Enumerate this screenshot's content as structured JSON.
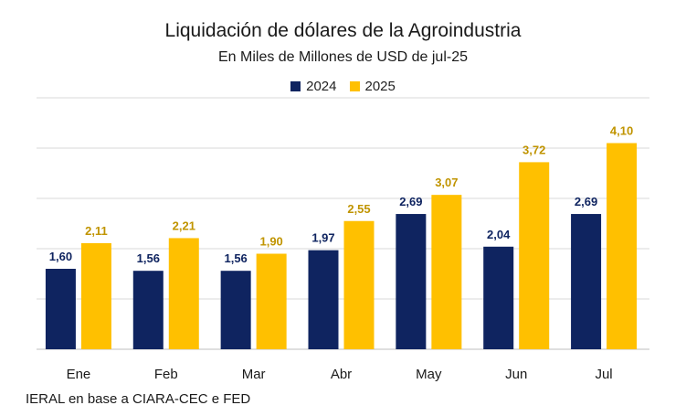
{
  "chart_data": {
    "type": "bar",
    "title": "Liquidación de dólares de la Agroindustria",
    "subtitle": "En Miles de Millones de USD de jul-25",
    "categories": [
      "Ene",
      "Feb",
      "Mar",
      "Abr",
      "May",
      "Jun",
      "Jul"
    ],
    "series": [
      {
        "name": "2024",
        "color": "#0f2460",
        "label_color": "#0f2460",
        "values": [
          1.6,
          1.56,
          1.56,
          1.97,
          2.69,
          2.04,
          2.69
        ],
        "labels": [
          "1,60",
          "1,56",
          "1,56",
          "1,97",
          "2,69",
          "2,04",
          "2,69"
        ]
      },
      {
        "name": "2025",
        "color": "#ffc000",
        "label_color": "#c09400",
        "values": [
          2.11,
          2.21,
          1.9,
          2.55,
          3.07,
          3.72,
          4.1
        ],
        "labels": [
          "2,11",
          "2,21",
          "1,90",
          "2,55",
          "3,07",
          "3,72",
          "4,10"
        ]
      }
    ],
    "ylim": [
      0,
      5
    ],
    "grid": true,
    "legend": "top-center",
    "xlabel": "",
    "ylabel": ""
  },
  "source": "IERAL en base a CIARA-CEC e FED"
}
